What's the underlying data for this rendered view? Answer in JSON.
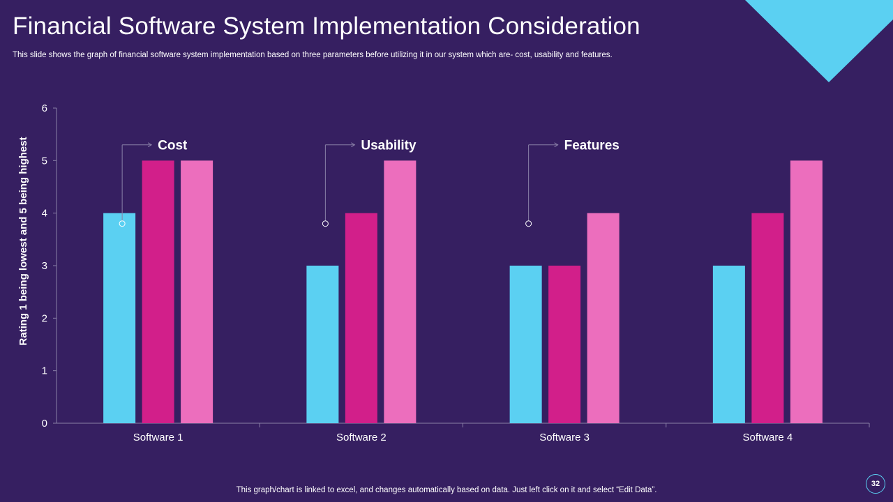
{
  "slide": {
    "title": "Financial Software System Implementation Consideration",
    "subtitle": "This slide shows the graph of  financial software system implementation based on three parameters before utilizing it in our system which are- cost, usability and features.",
    "footer_note": "This graph/chart is linked to excel,  and changes automatically based on data. Just left click on it and select “Edit Data”.",
    "page_number": "32"
  },
  "colors": {
    "background": "#361f61",
    "accent_triangle": "#5bd0f2",
    "cost": "#5bd0f2",
    "usability": "#d21f8a",
    "features": "#ec6ebd",
    "axis": "#8a80a8"
  },
  "chart_data": {
    "type": "bar",
    "title": "",
    "xlabel": "",
    "ylabel": "Rating 1 being lowest and 5 being highest",
    "ylim": [
      0,
      6
    ],
    "yticks": [
      0,
      1,
      2,
      3,
      4,
      5,
      6
    ],
    "categories": [
      "Software 1",
      "Software 2",
      "Software 3",
      "Software 4"
    ],
    "series": [
      {
        "name": "Cost",
        "values": [
          4,
          3,
          3,
          3
        ]
      },
      {
        "name": "Usability",
        "values": [
          5,
          4,
          3,
          4
        ]
      },
      {
        "name": "Features",
        "values": [
          5,
          5,
          4,
          5
        ]
      }
    ],
    "annotations": [
      {
        "label": "Cost",
        "series": "Cost",
        "category": "Software 1"
      },
      {
        "label": "Usability",
        "series": "Usability",
        "category": "Software 2"
      },
      {
        "label": "Features",
        "series": "Features",
        "category": "Software 3"
      }
    ]
  }
}
